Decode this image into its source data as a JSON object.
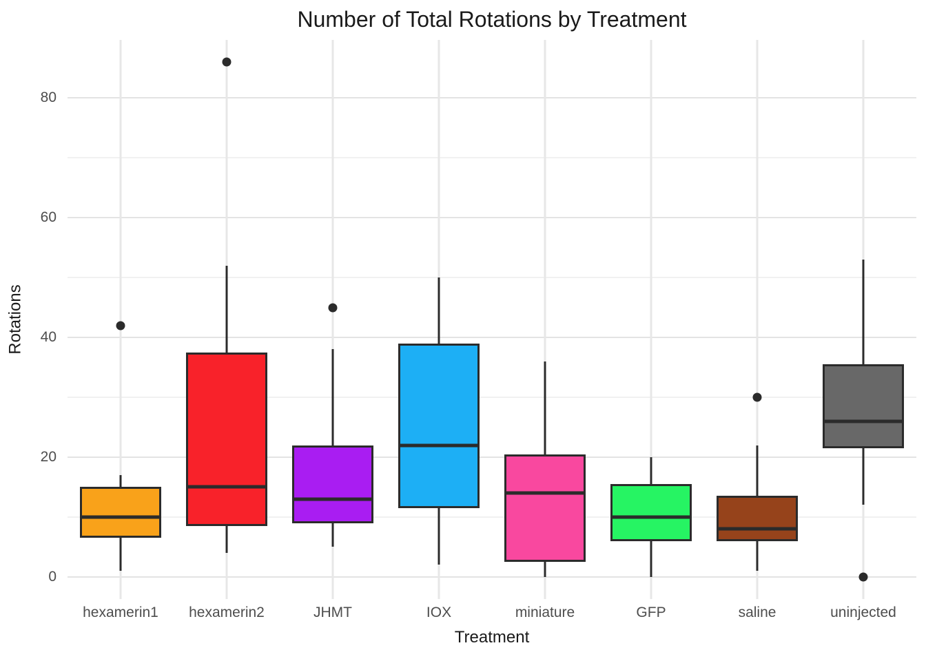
{
  "colors": {
    "background": "#FFFFFF",
    "grid_major": "#E3E3E3",
    "grid_minor": "#F1F1F1",
    "box_border": "#2B2B2B",
    "tick_label_color": "#4D4D4D",
    "title_color": "#1A1A1A"
  },
  "chart_data": {
    "type": "boxplot",
    "title": "Number of Total Rotations by Treatment",
    "xlabel": "Treatment",
    "ylabel": "Rotations",
    "ylim": [
      -3.7,
      89.7
    ],
    "y_major_ticks": [
      0,
      20,
      40,
      60,
      80
    ],
    "y_minor_gridlines": [
      10,
      30,
      50,
      70
    ],
    "grid": true,
    "legend": false,
    "categories": [
      "hexamerin1",
      "hexamerin2",
      "JHMT",
      "IOX",
      "miniature",
      "GFP",
      "saline",
      "uninjected"
    ],
    "series": [
      {
        "category": "hexamerin1",
        "fill": "#F9A21A",
        "whisker_low": 1,
        "q1": 6.5,
        "median": 10,
        "q3": 15,
        "whisker_high": 17,
        "outliers": [
          42
        ]
      },
      {
        "category": "hexamerin2",
        "fill": "#F8222A",
        "whisker_low": 4,
        "q1": 8.5,
        "median": 15,
        "q3": 37.5,
        "whisker_high": 52,
        "outliers": [
          86
        ]
      },
      {
        "category": "JHMT",
        "fill": "#A91DF2",
        "whisker_low": 5,
        "q1": 9,
        "median": 13,
        "q3": 22,
        "whisker_high": 38,
        "outliers": [
          45
        ]
      },
      {
        "category": "IOX",
        "fill": "#1DAFF5",
        "whisker_low": 2,
        "q1": 11.5,
        "median": 22,
        "q3": 39,
        "whisker_high": 50,
        "outliers": []
      },
      {
        "category": "miniature",
        "fill": "#F9489F",
        "whisker_low": 0,
        "q1": 2.5,
        "median": 14,
        "q3": 20.5,
        "whisker_high": 36,
        "outliers": []
      },
      {
        "category": "GFP",
        "fill": "#26F463",
        "whisker_low": 0,
        "q1": 6,
        "median": 10,
        "q3": 15.5,
        "whisker_high": 20,
        "outliers": []
      },
      {
        "category": "saline",
        "fill": "#96431B",
        "whisker_low": 1,
        "q1": 6,
        "median": 8,
        "q3": 13.5,
        "whisker_high": 22,
        "outliers": [
          30
        ]
      },
      {
        "category": "uninjected",
        "fill": "#686868",
        "whisker_low": 12,
        "q1": 21.5,
        "median": 26,
        "q3": 35.5,
        "whisker_high": 53,
        "outliers": [
          0
        ]
      }
    ]
  }
}
